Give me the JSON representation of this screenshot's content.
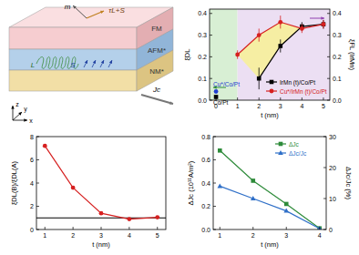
{
  "diagram": {
    "layers": [
      "FM",
      "AFM*",
      "NM*"
    ],
    "labels": {
      "magnetization": "m",
      "torque": "τL+S",
      "orbital": "L",
      "spin": "S",
      "current": "Jc"
    },
    "axes": [
      "x",
      "y",
      "z"
    ]
  },
  "chart_data": [
    {
      "type": "line",
      "x_label": "t (nm)",
      "y_label": "ξDL",
      "y2_label": "ξFL (IrMn)",
      "xlim": [
        -0.3,
        5.3
      ],
      "xticks": [
        0,
        1,
        2,
        3,
        4,
        5
      ],
      "ylim": [
        0,
        0.42
      ],
      "yticks": [
        {
          "value": 0,
          "label": "0.0"
        },
        0.1,
        0.2,
        0.3,
        0.4
      ],
      "y2lim": [
        0,
        0.42
      ],
      "y2ticks": [
        {
          "value": 0,
          "label": "0.0"
        },
        0.1,
        0.2,
        0.3,
        0.4
      ],
      "regions": [
        {
          "from": -0.3,
          "to": 1,
          "color": "#d8efd4"
        },
        {
          "from": 1,
          "to": 5.3,
          "color": "#ecdff3"
        }
      ],
      "legend": "lower right",
      "series": [
        {
          "name": "IrMn (t)/Co/Pt",
          "color": "#000000",
          "marker": "square",
          "x": [
            2,
            3,
            4,
            5
          ],
          "values": [
            0.1,
            0.25,
            0.34,
            0.35
          ],
          "errors": [
            0.05,
            0.03,
            0.02,
            0.02
          ]
        },
        {
          "name": "Cu*/IrMn (t)/Co/Pt",
          "color": "#d62020",
          "marker": "circle",
          "x": [
            1,
            2,
            3,
            4,
            5
          ],
          "values": [
            0.21,
            0.3,
            0.36,
            0.33,
            0.35
          ],
          "errors": [
            0.02,
            0.03,
            0.03,
            0.02,
            0.02
          ]
        },
        {
          "name": "Cu*/Co/Pt",
          "type": "scatter",
          "color": "#2040d0",
          "marker": "circle",
          "x": [
            0
          ],
          "values": [
            0.04
          ]
        },
        {
          "name": "Co/Pt",
          "type": "scatter",
          "color": "#000000",
          "marker": "square",
          "x": [
            0
          ],
          "values": [
            0.015
          ]
        }
      ]
    },
    {
      "type": "line",
      "x_label": "t (nm)",
      "y_label": "ξDL(B)/ξDL(A)",
      "xlim": [
        0.7,
        5.3
      ],
      "xticks": [
        1,
        2,
        3,
        4,
        5
      ],
      "ylim": [
        0,
        8
      ],
      "yticks": [
        0,
        2,
        4,
        6,
        8
      ],
      "hline": 1,
      "series": [
        {
          "name": "ξDL(B)/ξDL(A)",
          "color": "#d62020",
          "marker": "circle",
          "x": [
            1,
            2,
            3,
            4,
            5
          ],
          "values": [
            7.2,
            3.6,
            1.4,
            0.9,
            1.05
          ]
        }
      ]
    },
    {
      "type": "line",
      "x_label": "t (nm)",
      "y_label": "ΔJc (10¹¹A/m²)",
      "y2_label": "ΔJc/Jc (%)",
      "xlim": [
        0.8,
        4.2
      ],
      "xticks": [
        1,
        2,
        3,
        4
      ],
      "ylim": [
        0,
        0.8
      ],
      "yticks": [
        {
          "value": 0,
          "label": "0.0"
        },
        0.2,
        0.4,
        0.6,
        0.8
      ],
      "y2lim": [
        0,
        30
      ],
      "y2ticks": [
        0,
        10,
        20,
        30
      ],
      "legend": "upper right",
      "series": [
        {
          "name": "ΔJc",
          "color": "#2e8b3a",
          "marker": "square",
          "x": [
            1,
            2,
            3,
            4
          ],
          "values": [
            0.68,
            0.42,
            0.22,
            0.01
          ]
        },
        {
          "name": "ΔJc/Jc",
          "color": "#3070c8",
          "marker": "triangle",
          "axis": "y2",
          "x": [
            1,
            2,
            3,
            4
          ],
          "values": [
            14,
            10,
            6,
            0.3
          ]
        }
      ]
    }
  ]
}
